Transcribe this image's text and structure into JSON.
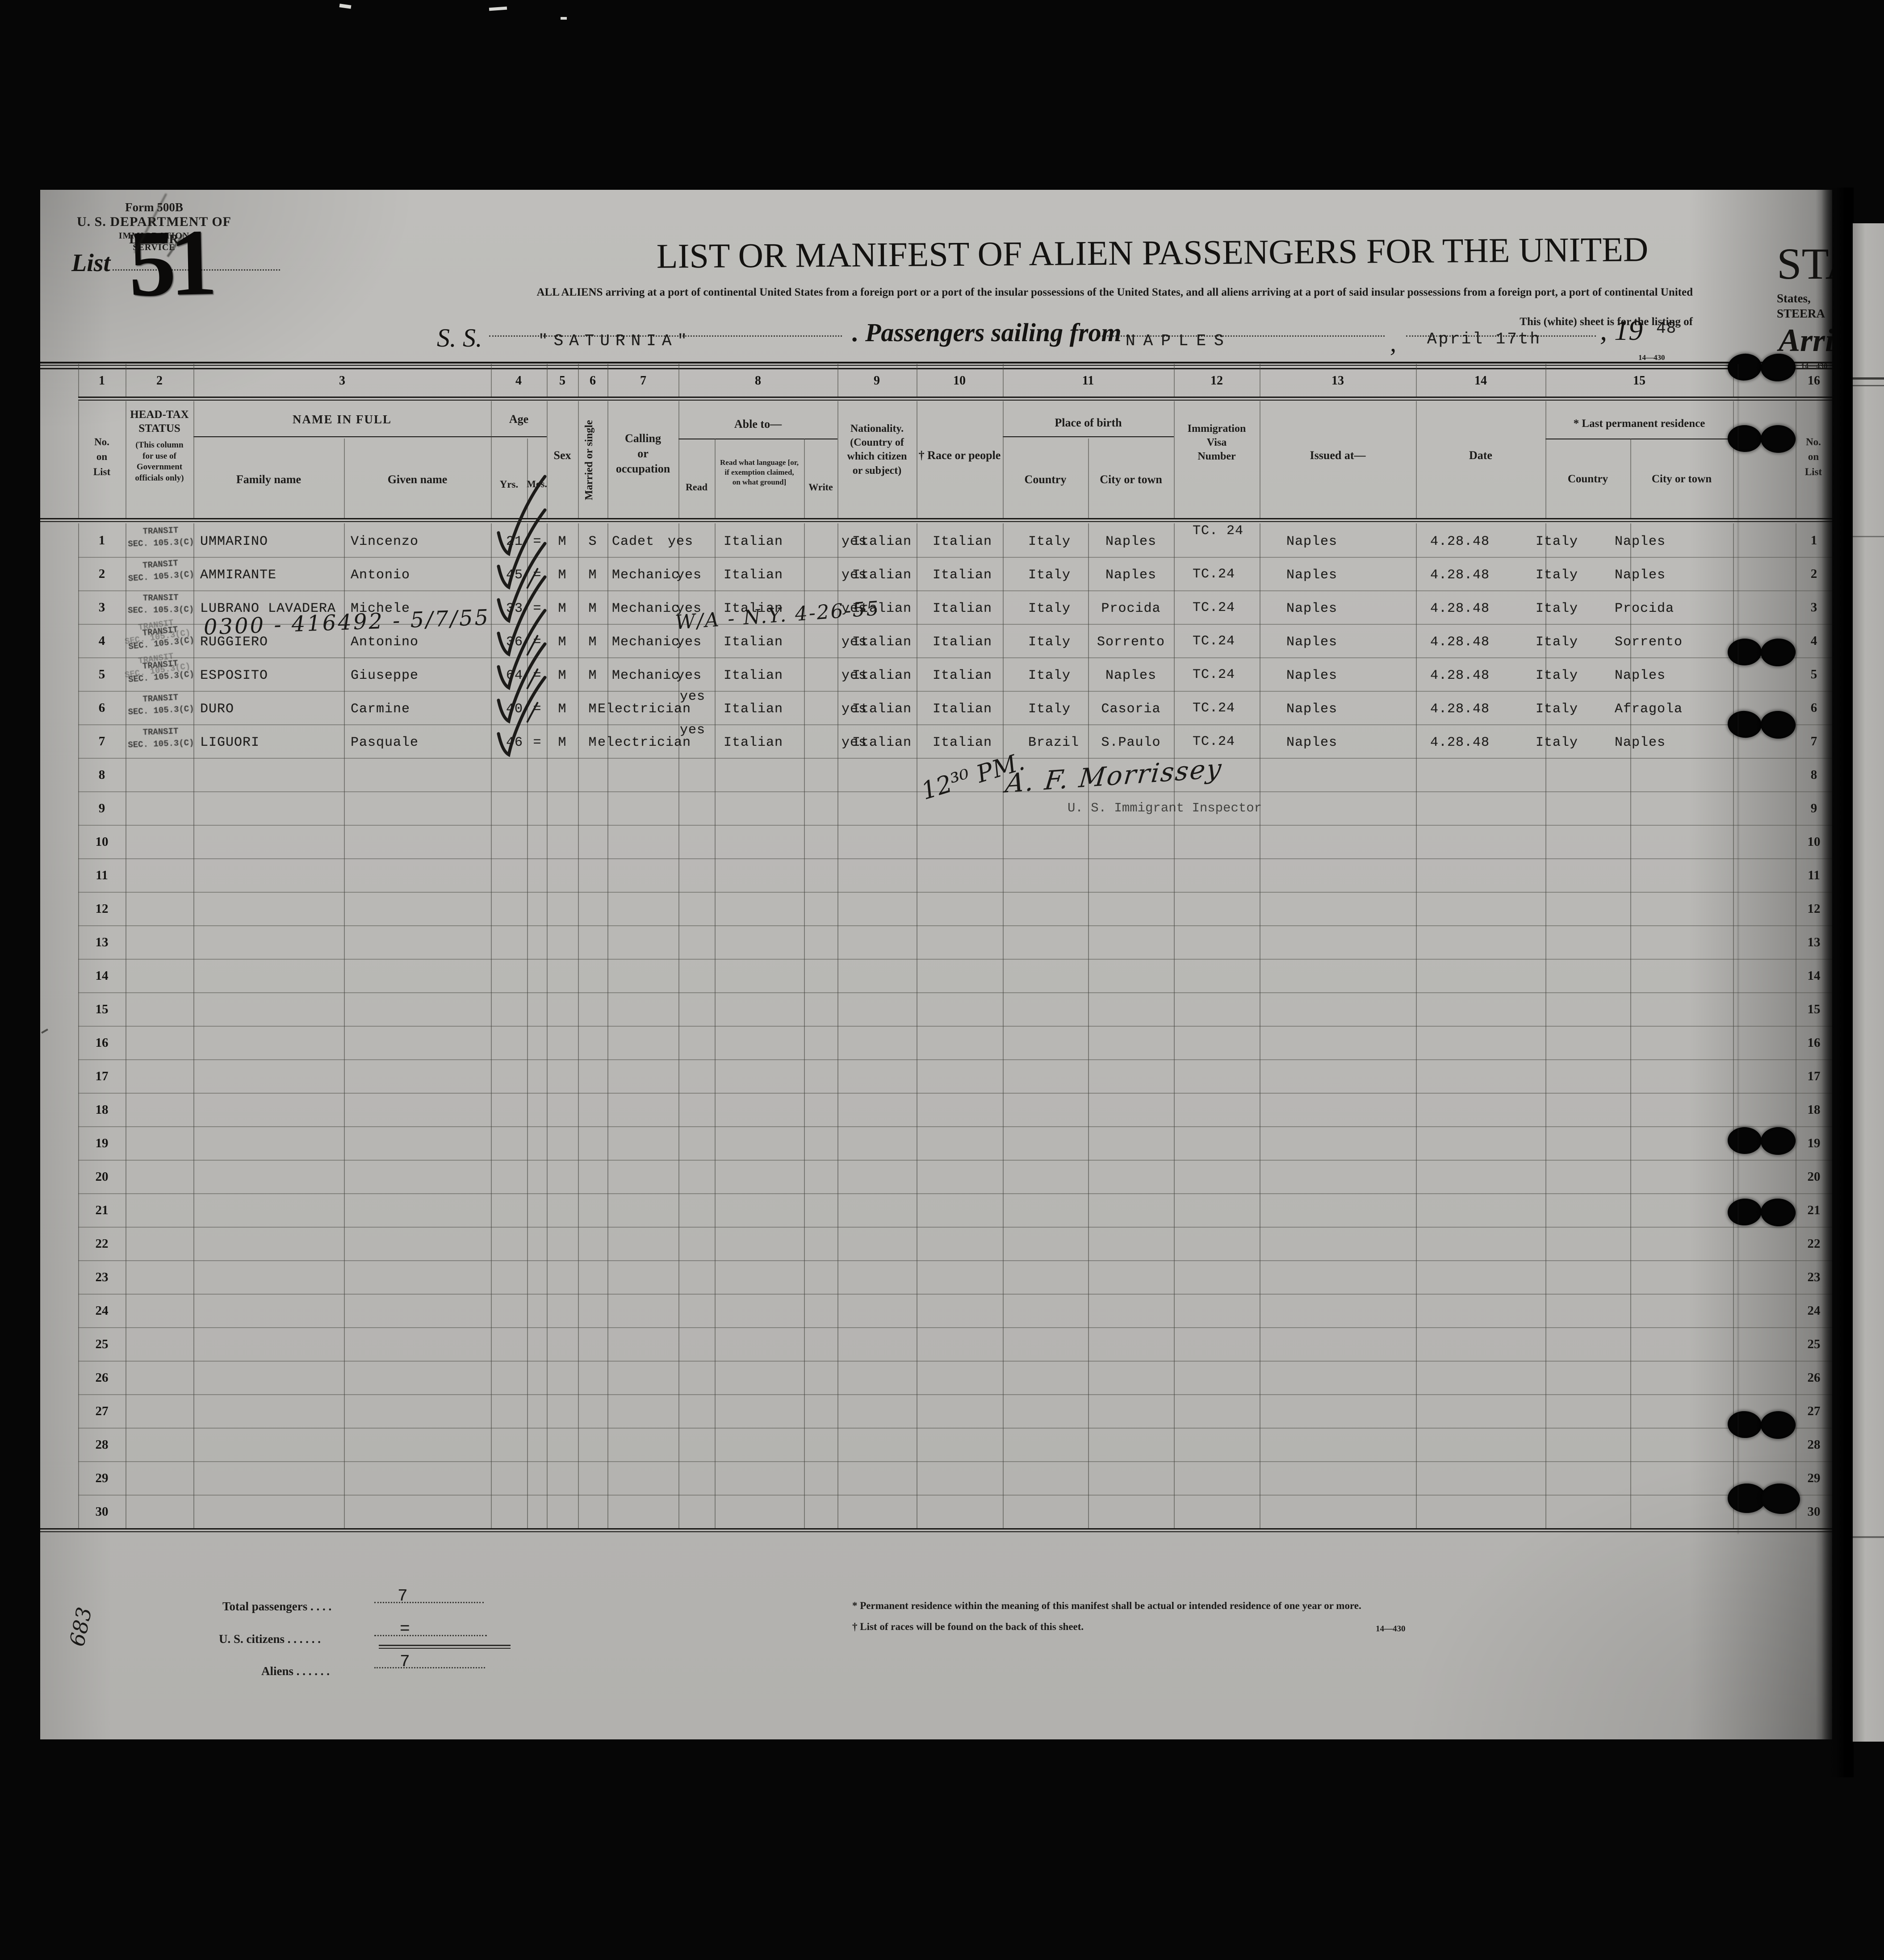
{
  "form": {
    "form_number": "Form 500B",
    "agency": "U. S. DEPARTMENT OF LABOR",
    "service": "IMMIGRATION SERVICE",
    "list_label": "List",
    "list_number": "51",
    "title": "LIST OR MANIFEST OF ALIEN PASSENGERS FOR THE UNITED",
    "subtitle": "ALL ALIENS arriving at a port of continental United States from a foreign port or a port of the insular possessions of the United States, and all aliens arriving at a port of said insular possessions from a foreign port, a port of continental United",
    "subtitle2": "This (white) sheet is for the listing of",
    "ss_label": "S. S.",
    "ship_name": "\"SATURNIA\"",
    "sailing_label": ". Passengers sailing from",
    "port": "NAPLES",
    "comma": ",",
    "sail_date": "April 17th",
    "year_prefix": ", 19",
    "year_suffix": "48",
    "form_code_small": "14—430"
  },
  "columns": {
    "numbers": [
      "1",
      "2",
      "3",
      "4",
      "5",
      "6",
      "7",
      "8",
      "9",
      "10",
      "11",
      "12",
      "13",
      "14",
      "15",
      "16"
    ],
    "c1": "No.\non\nList",
    "c2a": "HEAD-TAX\nSTATUS",
    "c2b": "(This column\nfor use of\nGovernment\nofficials only)",
    "c3": "NAME IN FULL",
    "c3a": "Family name",
    "c3b": "Given name",
    "c4": "Age",
    "c4a": "Yrs.",
    "c4b": "Mos.",
    "c5": "Sex",
    "c6": "Married or single",
    "c7": "Calling\nor\noccupation",
    "c8": "Able to—",
    "c8a": "Read",
    "c8b": "Read what language [or,\nif exemption claimed,\non what ground]",
    "c8c": "Write",
    "c9": "Nationality.\n(Country of\nwhich citizen\nor subject)",
    "c10": "† Race or people",
    "c11": "Place of birth",
    "c11a": "Country",
    "c11b": "City or town",
    "c12": "Immigration\nVisa\nNumber",
    "c13": "Issued at—",
    "c14": "Date",
    "c15": "* Last permanent residence",
    "c15a": "Country",
    "c15b": "City or town",
    "c16": "No.\non\nList"
  },
  "table": {
    "rows": [
      {
        "no": "1",
        "headtax": "TRANSIT\nSEC. 105.3(C)",
        "family": "UMMARINO",
        "given": "Vincenzo",
        "yrs": "21",
        "mos": "=",
        "sex": "M",
        "marital": "S",
        "occupation": "Cadet",
        "read": "yes",
        "language": "Italian",
        "write": "yes",
        "nationality": "Italian",
        "race": "Italian",
        "birth_country": "Italy",
        "birth_city": "Naples",
        "visa": "TC.\n 24",
        "issued_at": "Naples",
        "date": "4.28.48",
        "res_country": "Italy",
        "res_city": "Naples",
        "check": true
      },
      {
        "no": "2",
        "headtax": "TRANSIT\nSEC. 105.3(C)",
        "family": "AMMIRANTE",
        "given": "Antonio",
        "yrs": "45",
        "mos": "=",
        "sex": "M",
        "marital": "M",
        "occupation": "Mechanic",
        "read": "yes",
        "language": "Italian",
        "write": "yes",
        "nationality": "Italian",
        "race": "Italian",
        "birth_country": "Italy",
        "birth_city": "Naples",
        "visa": "TC.24",
        "issued_at": "Naples",
        "date": "4.28.48",
        "res_country": "Italy",
        "res_city": "Naples",
        "check": true,
        "eq_slash": true
      },
      {
        "no": "3",
        "headtax": "TRANSIT\nSEC. 105.3(C)",
        "family": "LUBRANO LAVADERA",
        "given": "Michele",
        "yrs": "33",
        "mos": "=",
        "sex": "M",
        "marital": "M",
        "occupation": "Mechanic",
        "read": "yes",
        "language": "Italian",
        "write": "yes",
        "nationality": "Italian",
        "race": "Italian",
        "birth_country": "Italy",
        "birth_city": "Procida",
        "visa": "TC.24",
        "issued_at": "Naples",
        "date": "4.28.48",
        "res_country": "Italy",
        "res_city": "Procida",
        "check": true
      },
      {
        "no": "4",
        "headtax": "TRANSIT\nSEC. 105.3(C)",
        "family": "RUGGIERO",
        "given": "Antonino",
        "yrs": "36",
        "mos": "=",
        "sex": "M",
        "marital": "M",
        "occupation": "Mechanic",
        "read": "yes",
        "language": "Italian",
        "write": "yes",
        "nationality": "Italian",
        "race": "Italian",
        "birth_country": "Italy",
        "birth_city": "Sorrento",
        "visa": "TC.24",
        "issued_at": "Naples",
        "date": "4.28.48",
        "res_country": "Italy",
        "res_city": "Sorrento",
        "check": true,
        "eq_slash": true
      },
      {
        "no": "5",
        "headtax": "TRANSIT\nSEC. 105.3(C)",
        "family": "ESPOSITO",
        "given": "Giuseppe",
        "yrs": "64",
        "mos": "=",
        "sex": "M",
        "marital": "M",
        "occupation": "Mechanic",
        "read": "yes",
        "language": "Italian",
        "write": "yes",
        "nationality": "Italian",
        "race": "Italian",
        "birth_country": "Italy",
        "birth_city": "Naples",
        "visa": "TC.24",
        "issued_at": "Naples",
        "date": "4.28.48",
        "res_country": "Italy",
        "res_city": "Naples",
        "check": true,
        "eq_slash": true
      },
      {
        "no": "6",
        "headtax": "TRANSIT\nSEC. 105.3(C)",
        "family": "DURO",
        "given": "Carmine",
        "yrs": "40",
        "mos": "=",
        "sex": "M",
        "marital": "M",
        "occupation": "Electrician",
        "read": "yes",
        "language": "Italian",
        "write": "yes",
        "nationality": "Italian",
        "race": "Italian",
        "birth_country": "Italy",
        "birth_city": "Casoria",
        "visa": "TC.24",
        "issued_at": "Naples",
        "date": "4.28.48",
        "res_country": "Italy",
        "res_city": "Afragola",
        "check": true,
        "read_up": true,
        "eq_slash": true
      },
      {
        "no": "7",
        "headtax": "TRANSIT\nSEC. 105.3(C)",
        "family": "LIGUORI",
        "given": "Pasquale",
        "yrs": "46",
        "mos": "=",
        "sex": "M",
        "marital": "M",
        "occupation": "electrician",
        "read": "yes",
        "language": "Italian",
        "write": "yes",
        "nationality": "Italian",
        "race": "Italian",
        "birth_country": "Brazil",
        "birth_city": "S.Paulo",
        "visa": "TC.24",
        "issued_at": "Naples",
        "date": "4.28.48",
        "res_country": "Italy",
        "res_city": "Naples",
        "check": true,
        "read_up": true
      },
      {
        "no": "8"
      },
      {
        "no": "9"
      },
      {
        "no": "10"
      },
      {
        "no": "11"
      },
      {
        "no": "12"
      },
      {
        "no": "13"
      },
      {
        "no": "14"
      },
      {
        "no": "15"
      },
      {
        "no": "16"
      },
      {
        "no": "17"
      },
      {
        "no": "18"
      },
      {
        "no": "19"
      },
      {
        "no": "20"
      },
      {
        "no": "21"
      },
      {
        "no": "22"
      },
      {
        "no": "23"
      },
      {
        "no": "24"
      },
      {
        "no": "25"
      },
      {
        "no": "26"
      },
      {
        "no": "27"
      },
      {
        "no": "28"
      },
      {
        "no": "29"
      },
      {
        "no": "30"
      }
    ]
  },
  "annotations": {
    "row3_number": "0300 - 416492 - 5/7/55",
    "row3_note": "W/A - N.Y.  4-26-55",
    "time_note": "12³⁰ PM.",
    "inspector_signature": "A. F. Morrissey",
    "inspector_title": "U. S. Immigrant Inspector",
    "margin_number": "683"
  },
  "footer": {
    "total_label": "Total passengers   .    .    .    .",
    "total_value": "7",
    "citizens_label": "U. S. citizens .    .    .    .    .    .",
    "citizens_value": "=",
    "aliens_label": "Aliens  .    .    .    .    .    .",
    "aliens_value": "7",
    "footnote1": "* Permanent residence within the meaning of this manifest shall be actual or intended residence of one year or more.",
    "footnote2": "† List of races will be found on the back of this sheet.",
    "form_code": "14—430"
  },
  "edge": {
    "states_big": "STA",
    "states_small": "States,",
    "steerage": "STEERA",
    "arriving": "Arri",
    "form_code": "14—430"
  }
}
